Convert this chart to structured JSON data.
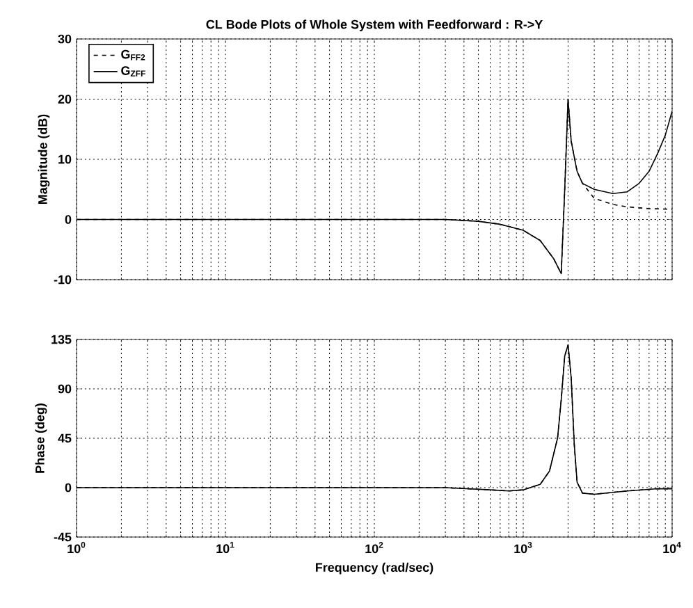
{
  "chart_data": [
    {
      "type": "line",
      "title": "CL Bode Plots of Whole System with Feedforward : R->Y",
      "ylabel": "Magnitude (dB)",
      "log": "x",
      "grid": true,
      "legend": "top left",
      "tick_labels": "y",
      "xlim": [
        1,
        10000
      ],
      "xticks": [
        {
          "value": 1,
          "label": null
        },
        {
          "value": 10,
          "label": null
        },
        {
          "value": 100,
          "label": null
        },
        {
          "value": 1000,
          "label": null
        },
        {
          "value": 10000,
          "label": null
        }
      ],
      "ylim": [
        -10,
        30
      ],
      "yticks": [
        -10,
        0,
        10,
        20,
        30
      ],
      "series": [
        {
          "name": "G$_{FF2}$",
          "color": "#000000",
          "line_style": "dashed",
          "x": [
            1,
            10,
            100,
            300,
            500,
            700,
            1000,
            1300,
            1600,
            1800,
            1900,
            2000,
            2100,
            2300,
            2500,
            3000,
            4000,
            5000,
            7000,
            10000
          ],
          "values": [
            0,
            0,
            0,
            0,
            -0.3,
            -0.8,
            -1.8,
            -3.5,
            -6.5,
            -9,
            5,
            20,
            13,
            8,
            6,
            3.5,
            2.5,
            2.1,
            1.8,
            1.7
          ]
        },
        {
          "name": "G$_{ZFF}$",
          "color": "#000000",
          "line_style": "solid",
          "x": [
            1,
            10,
            100,
            300,
            500,
            700,
            1000,
            1300,
            1600,
            1800,
            1900,
            2000,
            2100,
            2300,
            2500,
            3000,
            4000,
            5000,
            6000,
            7000,
            8000,
            9000,
            10000
          ],
          "values": [
            0,
            0,
            0,
            0,
            -0.3,
            -0.8,
            -1.8,
            -3.5,
            -6.5,
            -9,
            5,
            20,
            13,
            8,
            6,
            5,
            4.3,
            4.6,
            6,
            8,
            11,
            14,
            18
          ]
        }
      ]
    },
    {
      "type": "line",
      "xlabel": "Frequency (rad/sec)",
      "ylabel": "Phase (deg)",
      "log": "x",
      "grid": true,
      "xlim": [
        1,
        10000
      ],
      "xticks": [
        {
          "value": 1,
          "label": "10$^{0}$"
        },
        {
          "value": 10,
          "label": "10$^{1}$"
        },
        {
          "value": 100,
          "label": "10$^{2}$"
        },
        {
          "value": 1000,
          "label": "10$^{3}$"
        },
        {
          "value": 10000,
          "label": "10$^{4}$"
        }
      ],
      "ylim": [
        -45,
        135
      ],
      "yticks": [
        -45,
        0,
        45,
        90,
        135
      ],
      "series": [
        {
          "color": "#000000",
          "line_style": "dashed",
          "x": [
            1,
            10,
            100,
            300,
            600,
            800,
            1000,
            1300,
            1500,
            1700,
            1800,
            1900,
            2000,
            2100,
            2200,
            2300,
            2500,
            3000,
            5000,
            8000,
            10000
          ],
          "values": [
            0,
            0,
            0,
            0,
            -2,
            -3,
            -2,
            3,
            15,
            45,
            80,
            120,
            130,
            100,
            40,
            5,
            -5,
            -6,
            -3,
            -1,
            -1
          ]
        },
        {
          "color": "#000000",
          "line_style": "solid",
          "x": [
            1,
            10,
            100,
            300,
            600,
            800,
            1000,
            1300,
            1500,
            1700,
            1800,
            1900,
            2000,
            2100,
            2200,
            2300,
            2500,
            3000,
            5000,
            8000,
            10000
          ],
          "values": [
            0,
            0,
            0,
            0,
            -2,
            -3,
            -2,
            3,
            15,
            45,
            80,
            120,
            130,
            100,
            40,
            5,
            -5,
            -6,
            -3,
            -1,
            -1
          ]
        }
      ]
    }
  ]
}
